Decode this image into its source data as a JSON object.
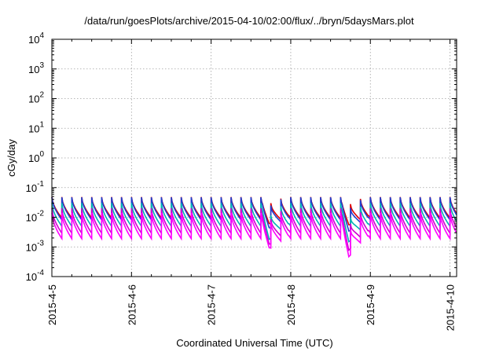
{
  "chart_data": {
    "type": "line",
    "title": "/data/run/goesPlots/archive/2015-04-10/02:00/flux/../bryn/5daysMars.plot",
    "xlabel": "Coordinated Universal Time (UTC)",
    "ylabel": "cGy/day",
    "yscale": "log",
    "ylim": [
      0.0001,
      10000
    ],
    "xlim": [
      "2015-04-05T00:00",
      "2015-04-10T02:00"
    ],
    "grid": true,
    "y_ticks": [
      {
        "mant": "10",
        "exp": "-4",
        "value": 0.0001
      },
      {
        "mant": "10",
        "exp": "-3",
        "value": 0.001
      },
      {
        "mant": "10",
        "exp": "-2",
        "value": 0.01
      },
      {
        "mant": "10",
        "exp": "-1",
        "value": 0.1
      },
      {
        "mant": "10",
        "exp": "0",
        "value": 1
      },
      {
        "mant": "10",
        "exp": "1",
        "value": 10
      },
      {
        "mant": "10",
        "exp": "2",
        "value": 100
      },
      {
        "mant": "10",
        "exp": "3",
        "value": 1000
      },
      {
        "mant": "10",
        "exp": "4",
        "value": 10000
      }
    ],
    "x_ticks": [
      {
        "label": "2015-4-5",
        "value": "2015-04-05T00:00"
      },
      {
        "label": "2015-4-6",
        "value": "2015-04-06T00:00"
      },
      {
        "label": "2015-4-7",
        "value": "2015-04-07T00:00"
      },
      {
        "label": "2015-4-8",
        "value": "2015-04-08T00:00"
      },
      {
        "label": "2015-4-9",
        "value": "2015-04-09T00:00"
      },
      {
        "label": "2015-4-10",
        "value": "2015-04-10T00:00"
      }
    ],
    "sawtooth_period_hours": 3,
    "series": [
      {
        "color": "#e00000",
        "peak": 0.048,
        "trough": 0.0095
      },
      {
        "color": "#1f3fd0",
        "peak": 0.047,
        "trough": 0.0082
      },
      {
        "color": "#00b4b4",
        "peak": 0.03,
        "trough": 0.005
      },
      {
        "color": "#d000d0",
        "peak": 0.02,
        "trough": 0.0029
      },
      {
        "color": "#ff00ff",
        "peak": 0.014,
        "trough": 0.0019
      }
    ],
    "events": [
      {
        "time": "2015-04-07T17:30",
        "min_factor": [
          0.55,
          0.45,
          0.3,
          0.35,
          0.4
        ]
      },
      {
        "time": "2015-04-08T17:30",
        "min_factor": [
          0.5,
          0.35,
          0.25,
          0.22,
          0.2
        ]
      }
    ]
  }
}
